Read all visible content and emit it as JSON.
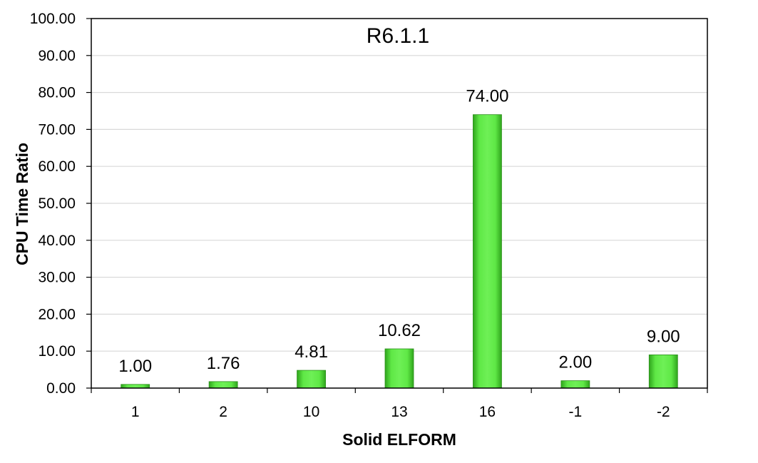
{
  "chart_data": {
    "type": "bar",
    "title": "R6.1.1",
    "xlabel": "Solid ELFORM",
    "ylabel": "CPU Time Ratio",
    "categories": [
      "1",
      "2",
      "10",
      "13",
      "16",
      "-1",
      "-2"
    ],
    "values": [
      1.0,
      1.76,
      4.81,
      10.62,
      74.0,
      2.0,
      9.0
    ],
    "value_labels": [
      "1.00",
      "1.76",
      "4.81",
      "10.62",
      "74.00",
      "2.00",
      "9.00"
    ],
    "ylim": [
      0,
      100
    ],
    "yticks": [
      "0.00",
      "10.00",
      "20.00",
      "30.00",
      "40.00",
      "50.00",
      "60.00",
      "70.00",
      "80.00",
      "90.00",
      "100.00"
    ],
    "grid": true,
    "legend": "none",
    "bar_color": "#4ddc34"
  }
}
